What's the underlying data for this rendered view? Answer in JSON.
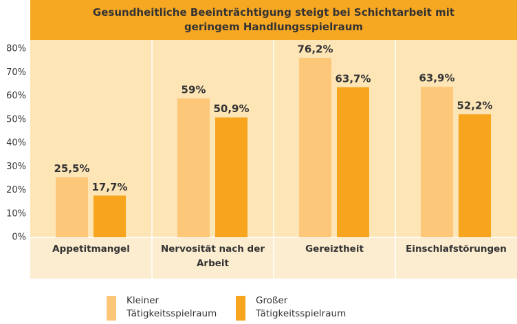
{
  "chart_data": {
    "type": "bar",
    "title": "Gesundheitliche Beeinträchtigung steigt bei Schichtarbeit mit geringem Handlungsspielraum",
    "categories": [
      "Appetitmangel",
      "Nervosität nach der Arbeit",
      "Gereiztheit",
      "Einschlafstörungen"
    ],
    "series": [
      {
        "name": "Kleiner Tätigkeitsspielraum",
        "color": "#fdc77a",
        "values": [
          25.5,
          59,
          76.2,
          63.9
        ],
        "value_labels": [
          "25,5%",
          "59%",
          "76,2%",
          "63,9%"
        ]
      },
      {
        "name": "Großer Tätigkeitsspielraum",
        "color": "#f7a41e",
        "values": [
          17.7,
          50.9,
          63.7,
          52.2
        ],
        "value_labels": [
          "17,7%",
          "50,9%",
          "63,7%",
          "52,2%"
        ]
      }
    ],
    "ylim": [
      0,
      80
    ],
    "yticks": [
      {
        "value": 0,
        "label": "0%"
      },
      {
        "value": 10,
        "label": "10%"
      },
      {
        "value": 20,
        "label": "20%"
      },
      {
        "value": 30,
        "label": "30%"
      },
      {
        "value": 40,
        "label": "40%"
      },
      {
        "value": 50,
        "label": "50%"
      },
      {
        "value": 60,
        "label": "60%"
      },
      {
        "value": 70,
        "label": "70%"
      },
      {
        "value": 80,
        "label": "80%"
      }
    ],
    "grid": false
  }
}
